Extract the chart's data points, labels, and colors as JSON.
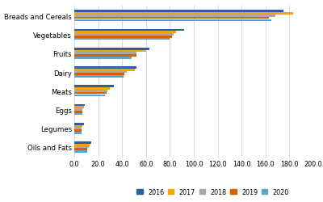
{
  "categories": [
    "Breads and Cereals",
    "Vegetables",
    "Fruits",
    "Dairy",
    "Meats",
    "Eggs",
    "Legumes",
    "Oils and Fats"
  ],
  "years": [
    "2016",
    "2017",
    "2018",
    "2019",
    "2020"
  ],
  "colors": [
    "#2e5fa3",
    "#f0a500",
    "#a8a8a8",
    "#d95f02",
    "#5ba4cf"
  ],
  "values": {
    "Breads and Cereals": [
      175,
      183,
      168,
      163,
      165
    ],
    "Vegetables": [
      92,
      85,
      83,
      82,
      80
    ],
    "Fruits": [
      63,
      60,
      52,
      52,
      48
    ],
    "Dairy": [
      52,
      51,
      44,
      42,
      41
    ],
    "Meats": [
      33,
      30,
      28,
      27,
      26
    ],
    "Eggs": [
      9,
      8,
      7,
      7,
      7
    ],
    "Legumes": [
      8,
      7,
      6,
      6,
      6
    ],
    "Oils and Fats": [
      14,
      13,
      12,
      11,
      11
    ]
  },
  "xlim": [
    0,
    200
  ],
  "xticks": [
    0.0,
    20.0,
    40.0,
    60.0,
    80.0,
    100.0,
    120.0,
    140.0,
    160.0,
    180.0,
    200.0
  ],
  "background_color": "#ffffff",
  "grid_color": "#d9d9d9"
}
